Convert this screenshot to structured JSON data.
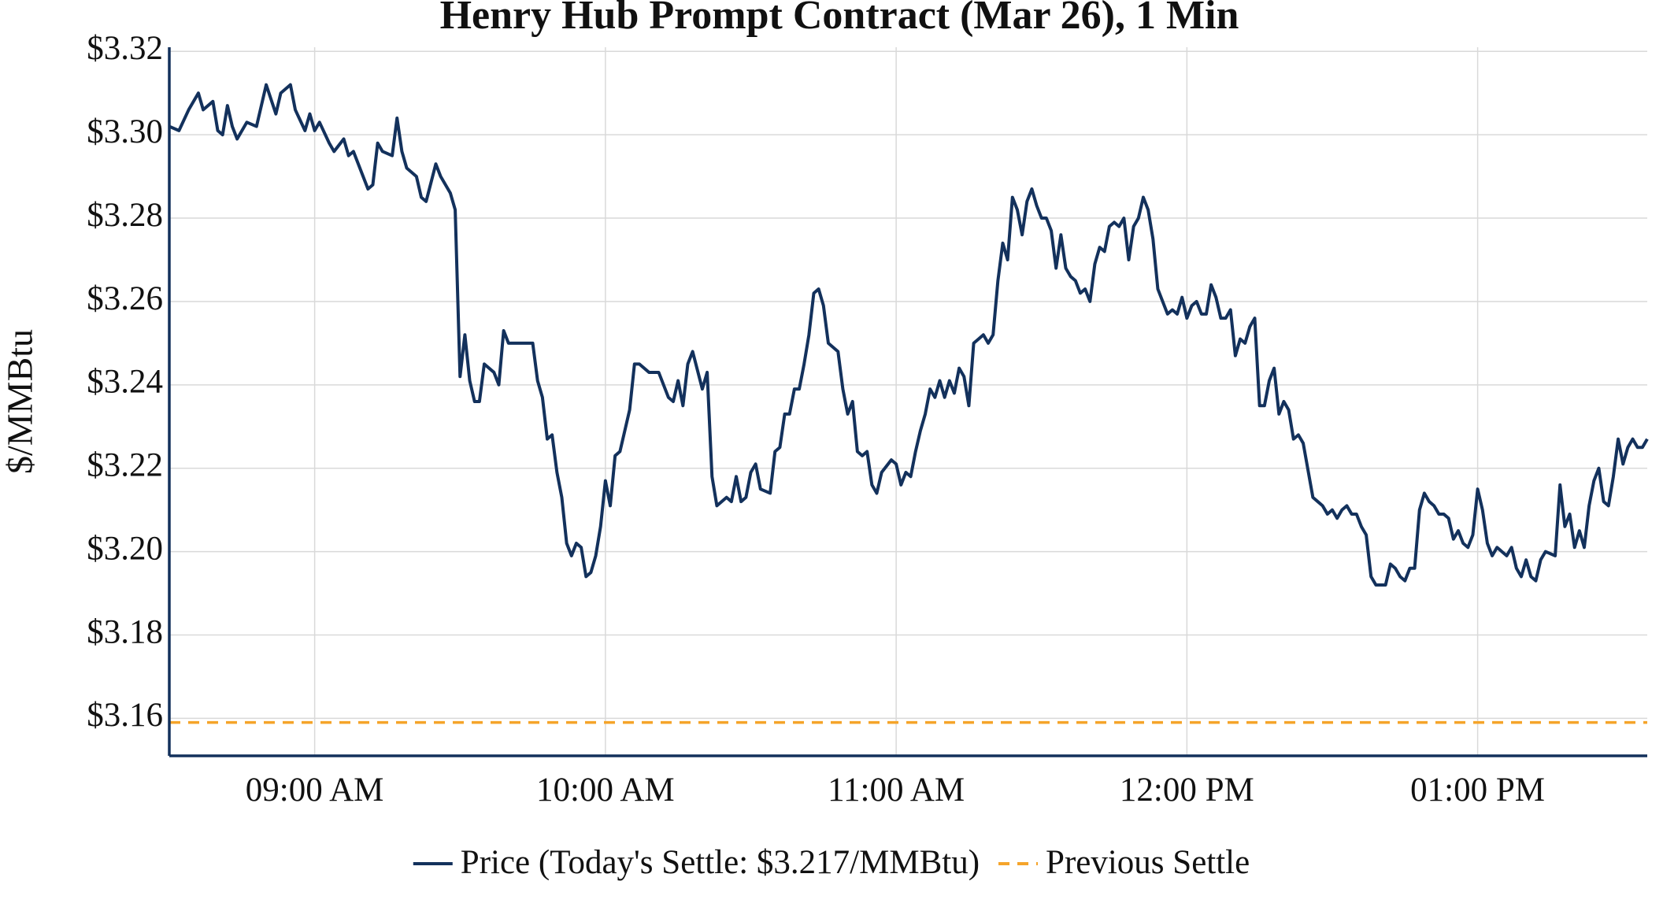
{
  "chart_data": {
    "type": "line",
    "title": "Henry Hub Prompt Contract (Mar 26), 1 Min",
    "ylabel": "$/MMBtu",
    "grid": true,
    "legend": "bottom",
    "xlim": [
      "08:30",
      "13:35"
    ],
    "xticks": [
      {
        "value": "09:00",
        "label": "09:00 AM"
      },
      {
        "value": "10:00",
        "label": "10:00 AM"
      },
      {
        "value": "11:00",
        "label": "11:00 AM"
      },
      {
        "value": "12:00",
        "label": "12:00 PM"
      },
      {
        "value": "13:00",
        "label": "01:00 PM"
      }
    ],
    "ylim": [
      3.151,
      3.321
    ],
    "yticks": [
      {
        "value": 3.16,
        "label": "$3.16"
      },
      {
        "value": 3.18,
        "label": "$3.18"
      },
      {
        "value": 3.2,
        "label": "$3.20"
      },
      {
        "value": 3.22,
        "label": "$3.22"
      },
      {
        "value": 3.24,
        "label": "$3.24"
      },
      {
        "value": 3.26,
        "label": "$3.26"
      },
      {
        "value": 3.28,
        "label": "$3.28"
      },
      {
        "value": 3.3,
        "label": "$3.30"
      },
      {
        "value": 3.32,
        "label": "$3.32"
      }
    ],
    "x": [
      "08:30",
      "08:32",
      "08:34",
      "08:36",
      "08:37",
      "08:39",
      "08:40",
      "08:41",
      "08:42",
      "08:43",
      "08:44",
      "08:46",
      "08:48",
      "08:50",
      "08:52",
      "08:53",
      "08:55",
      "08:56",
      "08:58",
      "08:59",
      "09:00",
      "09:01",
      "09:03",
      "09:04",
      "09:06",
      "09:07",
      "09:08",
      "09:11",
      "09:12",
      "09:13",
      "09:14",
      "09:16",
      "09:17",
      "09:18",
      "09:19",
      "09:21",
      "09:22",
      "09:23",
      "09:25",
      "09:26",
      "09:28",
      "09:29",
      "09:30",
      "09:31",
      "09:32",
      "09:33",
      "09:34",
      "09:35",
      "09:37",
      "09:38",
      "09:39",
      "09:40",
      "09:42",
      "09:44",
      "09:45",
      "09:46",
      "09:47",
      "09:48",
      "09:49",
      "09:50",
      "09:51",
      "09:52",
      "09:53",
      "09:54",
      "09:55",
      "09:56",
      "09:57",
      "09:58",
      "09:59",
      "10:00",
      "10:01",
      "10:02",
      "10:03",
      "10:04",
      "10:05",
      "10:06",
      "10:07",
      "10:09",
      "10:11",
      "10:13",
      "10:14",
      "10:15",
      "10:16",
      "10:17",
      "10:18",
      "10:20",
      "10:21",
      "10:22",
      "10:23",
      "10:25",
      "10:26",
      "10:27",
      "10:28",
      "10:29",
      "10:30",
      "10:31",
      "10:32",
      "10:34",
      "10:35",
      "10:36",
      "10:37",
      "10:38",
      "10:39",
      "10:40",
      "10:41",
      "10:42",
      "10:43",
      "10:44",
      "10:45",
      "10:46",
      "10:48",
      "10:49",
      "10:50",
      "10:51",
      "10:52",
      "10:53",
      "10:54",
      "10:55",
      "10:56",
      "10:57",
      "10:59",
      "11:00",
      "11:01",
      "11:02",
      "11:03",
      "11:04",
      "11:05",
      "11:06",
      "11:07",
      "11:08",
      "11:09",
      "11:10",
      "11:11",
      "11:12",
      "11:13",
      "11:14",
      "11:15",
      "11:16",
      "11:17",
      "11:18",
      "11:19",
      "11:20",
      "11:21",
      "11:22",
      "11:23",
      "11:24",
      "11:25",
      "11:26",
      "11:27",
      "11:28",
      "11:29",
      "11:30",
      "11:31",
      "11:32",
      "11:33",
      "11:34",
      "11:35",
      "11:36",
      "11:37",
      "11:38",
      "11:39",
      "11:40",
      "11:41",
      "11:42",
      "11:43",
      "11:44",
      "11:45",
      "11:46",
      "11:47",
      "11:48",
      "11:49",
      "11:50",
      "11:51",
      "11:52",
      "11:53",
      "11:54",
      "11:55",
      "11:56",
      "11:57",
      "11:58",
      "11:59",
      "12:00",
      "12:01",
      "12:02",
      "12:03",
      "12:04",
      "12:05",
      "12:06",
      "12:07",
      "12:08",
      "12:09",
      "12:10",
      "12:11",
      "12:12",
      "12:13",
      "12:14",
      "12:15",
      "12:16",
      "12:17",
      "12:18",
      "12:19",
      "12:20",
      "12:21",
      "12:22",
      "12:23",
      "12:24",
      "12:26",
      "12:27",
      "12:28",
      "12:29",
      "12:30",
      "12:31",
      "12:32",
      "12:33",
      "12:34",
      "12:35",
      "12:36",
      "12:37",
      "12:38",
      "12:39",
      "12:41",
      "12:42",
      "12:43",
      "12:44",
      "12:45",
      "12:46",
      "12:47",
      "12:48",
      "12:49",
      "12:50",
      "12:51",
      "12:52",
      "12:53",
      "12:54",
      "12:55",
      "12:56",
      "12:57",
      "12:58",
      "12:59",
      "13:00",
      "13:01",
      "13:02",
      "13:03",
      "13:04",
      "13:05",
      "13:06",
      "13:07",
      "13:08",
      "13:09",
      "13:10",
      "13:11",
      "13:12",
      "13:13",
      "13:14",
      "13:16",
      "13:17",
      "13:18",
      "13:19",
      "13:20",
      "13:21",
      "13:22",
      "13:23",
      "13:24",
      "13:25",
      "13:26",
      "13:27",
      "13:28",
      "13:29",
      "13:30",
      "13:31",
      "13:32",
      "13:33",
      "13:34",
      "13:35"
    ],
    "series": [
      {
        "name": "Price (Today's Settle: $3.217/MMBtu)",
        "color": "#13315c",
        "style": "solid",
        "values": [
          3.302,
          3.301,
          3.306,
          3.31,
          3.306,
          3.308,
          3.301,
          3.3,
          3.307,
          3.302,
          3.299,
          3.303,
          3.302,
          3.312,
          3.305,
          3.31,
          3.312,
          3.306,
          3.301,
          3.305,
          3.301,
          3.303,
          3.298,
          3.296,
          3.299,
          3.295,
          3.296,
          3.287,
          3.288,
          3.298,
          3.296,
          3.295,
          3.304,
          3.296,
          3.292,
          3.29,
          3.285,
          3.284,
          3.293,
          3.29,
          3.286,
          3.282,
          3.242,
          3.252,
          3.241,
          3.236,
          3.236,
          3.245,
          3.243,
          3.24,
          3.253,
          3.25,
          3.25,
          3.25,
          3.25,
          3.241,
          3.237,
          3.227,
          3.228,
          3.219,
          3.213,
          3.202,
          3.199,
          3.202,
          3.201,
          3.194,
          3.195,
          3.199,
          3.206,
          3.217,
          3.211,
          3.223,
          3.224,
          3.229,
          3.234,
          3.245,
          3.245,
          3.243,
          3.243,
          3.237,
          3.236,
          3.241,
          3.235,
          3.245,
          3.248,
          3.239,
          3.243,
          3.218,
          3.211,
          3.213,
          3.212,
          3.218,
          3.212,
          3.213,
          3.219,
          3.221,
          3.215,
          3.214,
          3.224,
          3.225,
          3.233,
          3.233,
          3.239,
          3.239,
          3.245,
          3.252,
          3.262,
          3.263,
          3.259,
          3.25,
          3.248,
          3.239,
          3.233,
          3.236,
          3.224,
          3.223,
          3.224,
          3.216,
          3.214,
          3.219,
          3.222,
          3.221,
          3.216,
          3.219,
          3.218,
          3.224,
          3.229,
          3.233,
          3.239,
          3.237,
          3.241,
          3.237,
          3.241,
          3.238,
          3.244,
          3.242,
          3.235,
          3.25,
          3.251,
          3.252,
          3.25,
          3.252,
          3.265,
          3.274,
          3.27,
          3.285,
          3.282,
          3.276,
          3.284,
          3.287,
          3.283,
          3.28,
          3.28,
          3.277,
          3.268,
          3.276,
          3.268,
          3.266,
          3.265,
          3.262,
          3.263,
          3.26,
          3.269,
          3.273,
          3.272,
          3.278,
          3.279,
          3.278,
          3.28,
          3.27,
          3.278,
          3.28,
          3.285,
          3.282,
          3.275,
          3.263,
          3.26,
          3.257,
          3.258,
          3.257,
          3.261,
          3.256,
          3.259,
          3.26,
          3.257,
          3.257,
          3.264,
          3.261,
          3.256,
          3.256,
          3.258,
          3.247,
          3.251,
          3.25,
          3.254,
          3.256,
          3.235,
          3.235,
          3.241,
          3.244,
          3.233,
          3.236,
          3.234,
          3.227,
          3.228,
          3.226,
          3.213,
          3.212,
          3.211,
          3.209,
          3.21,
          3.208,
          3.21,
          3.211,
          3.209,
          3.209,
          3.206,
          3.204,
          3.194,
          3.192,
          3.192,
          3.197,
          3.196,
          3.194,
          3.193,
          3.196,
          3.196,
          3.21,
          3.214,
          3.212,
          3.211,
          3.209,
          3.209,
          3.208,
          3.203,
          3.205,
          3.202,
          3.201,
          3.204,
          3.215,
          3.21,
          3.202,
          3.199,
          3.201,
          3.2,
          3.199,
          3.201,
          3.196,
          3.194,
          3.198,
          3.194,
          3.193,
          3.198,
          3.2,
          3.199,
          3.216,
          3.206,
          3.209,
          3.201,
          3.205,
          3.201,
          3.211,
          3.217,
          3.22,
          3.212,
          3.211,
          3.218,
          3.227,
          3.221,
          3.225,
          3.227,
          3.225,
          3.225,
          3.227
        ]
      },
      {
        "name": "Previous Settle",
        "color": "#f5a42a",
        "style": "dashed",
        "value": 3.159
      }
    ]
  }
}
